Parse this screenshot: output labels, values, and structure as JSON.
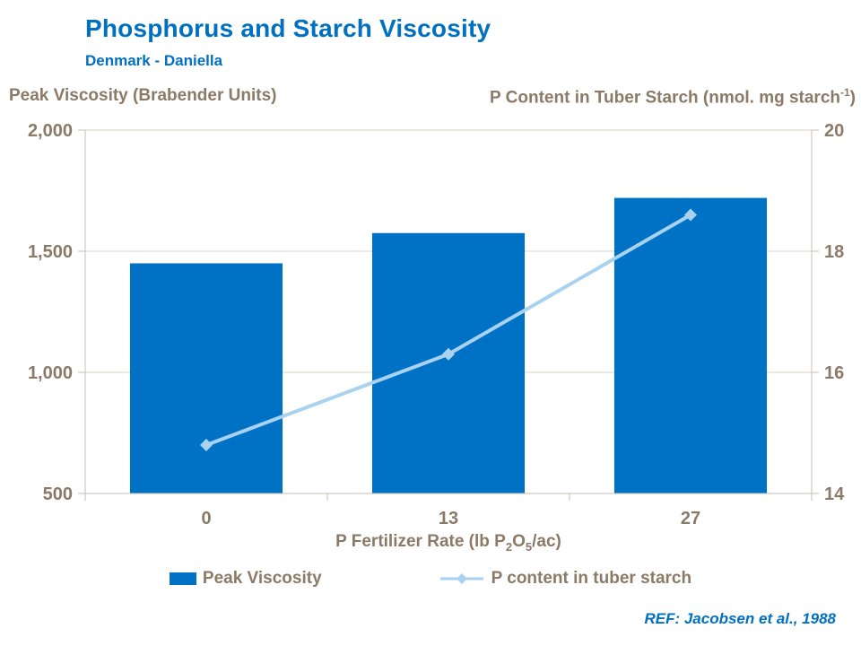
{
  "header": {
    "title": "Phosphorus and Starch Viscosity",
    "subtitle": "Denmark - Daniella"
  },
  "axes": {
    "left_title": "Peak Viscosity (Brabender Units)",
    "right_title_main": "P Content in Tuber Starch (nmol. mg starch",
    "right_title_sup": "-1",
    "right_title_close": ")",
    "x_title_pre": "P Fertilizer Rate (lb P",
    "x_title_sub1": "2",
    "x_title_mid": "O",
    "x_title_sub2": "5",
    "x_title_post": "/ac)"
  },
  "chart_data": {
    "type": "combo-bar-line",
    "title": "Phosphorus and Starch Viscosity",
    "subtitle": "Denmark - Daniella",
    "xlabel": "P Fertilizer Rate (lb P2O5/ac)",
    "ylabel_left": "Peak Viscosity (Brabender Units)",
    "ylabel_right": "P Content in Tuber Starch (nmol. mg starch-1)",
    "categories": [
      "0",
      "13",
      "27"
    ],
    "series": [
      {
        "name": "Peak Viscosity",
        "type": "bar",
        "axis": "left",
        "values": [
          1450,
          1575,
          1720
        ]
      },
      {
        "name": "P content in tuber starch",
        "type": "line",
        "axis": "right",
        "values": [
          14.8,
          16.3,
          18.6
        ]
      }
    ],
    "left_axis": {
      "min": 500,
      "max": 2000,
      "tick_values": [
        2000,
        1500,
        1000,
        500
      ],
      "ticks": [
        "2,000",
        "1,500",
        "1,000",
        "500"
      ]
    },
    "right_axis": {
      "min": 14,
      "max": 20,
      "tick_values": [
        20,
        18,
        16,
        14
      ],
      "ticks": [
        "20",
        "18",
        "16",
        "14"
      ]
    },
    "grid": true,
    "legend_position": "bottom"
  },
  "legend": {
    "bar_label": "Peak Viscosity",
    "line_label": "P content in tuber starch"
  },
  "footer": {
    "ref": "REF: Jacobsen et al., 1988"
  },
  "colors": {
    "title": "#0070C0",
    "bar": "#0072C6",
    "line": "#A9D2F0",
    "axis_text": "#8A7A66",
    "grid": "#D8D0C4",
    "border": "#C6BDB0"
  }
}
